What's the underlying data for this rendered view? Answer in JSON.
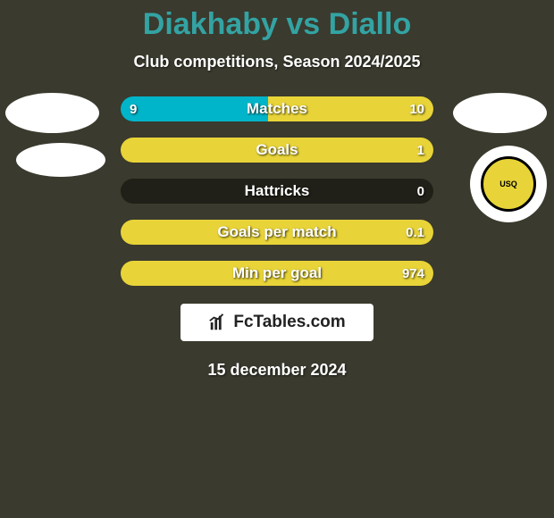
{
  "background_color": "#3a3a2e",
  "title": {
    "text": "Diakhaby vs Diallo",
    "color": "#33a3a3",
    "fontsize": 34
  },
  "subtitle": {
    "text": "Club competitions, Season 2024/2025",
    "color": "#ffffff",
    "fontsize": 18
  },
  "badges": {
    "top_left": {
      "bg": "#ffffff"
    },
    "mid_left": {
      "bg": "#ffffff"
    },
    "top_right": {
      "bg": "#ffffff"
    },
    "club_logo": {
      "bg": "#ffffff",
      "inner_bg": "#e8d438",
      "inner_text": "USQ"
    }
  },
  "bars": {
    "track_color": "#202018",
    "left_color": "#00b5c9",
    "right_color": "#e8d438",
    "radius": 14,
    "rows": [
      {
        "label": "Matches",
        "left_val": "9",
        "right_val": "10",
        "left_pct": 47,
        "right_pct": 53
      },
      {
        "label": "Goals",
        "left_val": "",
        "right_val": "1",
        "left_pct": 0,
        "right_pct": 100
      },
      {
        "label": "Hattricks",
        "left_val": "",
        "right_val": "0",
        "left_pct": 0,
        "right_pct": 0
      },
      {
        "label": "Goals per match",
        "left_val": "",
        "right_val": "0.1",
        "left_pct": 0,
        "right_pct": 100
      },
      {
        "label": "Min per goal",
        "left_val": "",
        "right_val": "974",
        "left_pct": 0,
        "right_pct": 100
      }
    ]
  },
  "branding": {
    "text": "FcTables.com",
    "bg": "#ffffff",
    "color": "#222222"
  },
  "date": {
    "text": "15 december 2024",
    "color": "#ffffff",
    "fontsize": 18
  }
}
